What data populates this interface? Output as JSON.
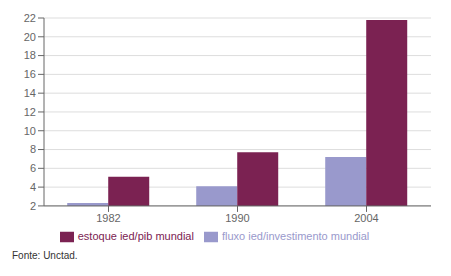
{
  "chart_data": {
    "type": "bar",
    "categories": [
      "1982",
      "1990",
      "2004"
    ],
    "series": [
      {
        "name": "fluxo ied/investimento mundial",
        "color": "#9999cc",
        "values": [
          2.3,
          4.1,
          7.2
        ]
      },
      {
        "name": "estoque ied/pib mundial",
        "color": "#7b2252",
        "values": [
          5.1,
          7.7,
          21.8
        ]
      }
    ],
    "ylim": [
      2,
      22
    ],
    "yticks": [
      2,
      4,
      6,
      8,
      10,
      12,
      14,
      16,
      18,
      20,
      22
    ],
    "grid": true,
    "legend": "bottom",
    "annotations": [
      "Fonte: Unctad."
    ]
  }
}
